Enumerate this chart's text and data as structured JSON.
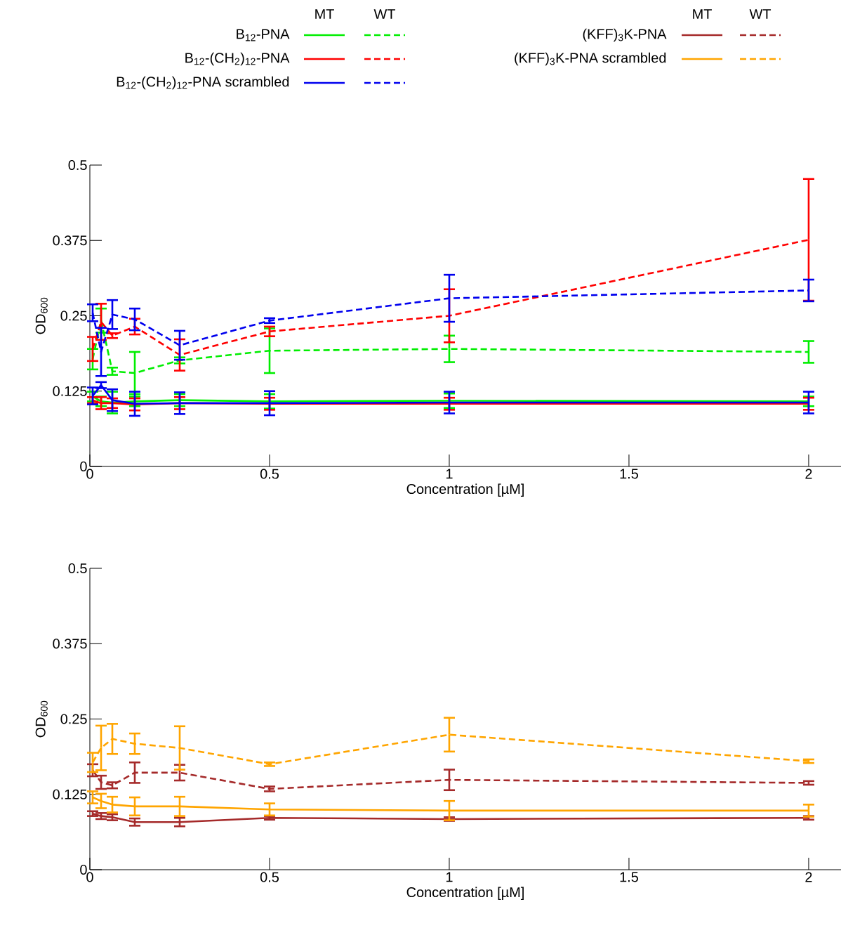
{
  "chart_data": [
    {
      "type": "line",
      "xlabel": "Concentration [µM]",
      "ylabel": "OD$_{600}$",
      "legend": "top",
      "annotations": [
        "MT",
        "WT"
      ],
      "x": [
        0.0078,
        0.03125,
        0.0625,
        0.125,
        0.25,
        0.5,
        1,
        2
      ],
      "xlim": [
        0,
        2.09
      ],
      "ylim": [
        0,
        0.5
      ],
      "xticks": [
        0,
        0.5,
        1,
        1.5,
        2
      ],
      "yticks": [
        0,
        0.125,
        0.25,
        0.375,
        0.5
      ],
      "series": [
        {
          "name": "B$_{12}$-PNA",
          "color": "#00ee00",
          "line_style": "solid",
          "values": [
            0.116,
            0.108,
            0.106,
            0.108,
            0.11,
            0.108,
            0.109,
            0.108
          ],
          "errors": [
            0.008,
            0.008,
            0.018,
            0.008,
            0.01,
            0.012,
            0.012,
            0.008
          ]
        },
        {
          "color": "#00ee00",
          "line_style": "dashed",
          "values": [
            0.178,
            0.242,
            0.158,
            0.155,
            0.176,
            0.192,
            0.195,
            0.19
          ],
          "errors": [
            0.017,
            0.02,
            0.006,
            0.035,
            0.005,
            0.037,
            0.022,
            0.018
          ]
        },
        {
          "name": "B$_{12}$-(CH$_{2}$)$_{12}$-PNA",
          "color": "#ff0000",
          "line_style": "solid",
          "values": [
            0.11,
            0.105,
            0.105,
            0.103,
            0.105,
            0.104,
            0.104,
            0.104
          ],
          "errors": [
            0.005,
            0.01,
            0.008,
            0.01,
            0.01,
            0.01,
            0.01,
            0.01
          ]
        },
        {
          "color": "#ff0000",
          "line_style": "dashed",
          "values": [
            0.195,
            0.24,
            0.217,
            0.232,
            0.185,
            0.224,
            0.25,
            0.376
          ],
          "errors": [
            0.02,
            0.03,
            0.004,
            0.013,
            0.026,
            0.008,
            0.044,
            0.101
          ]
        },
        {
          "name": "B$_{12}$-(CH$_{2}$)$_{12}$-PNA scrambled",
          "color": "#0000ee",
          "line_style": "solid",
          "values": [
            0.117,
            0.135,
            0.11,
            0.104,
            0.105,
            0.105,
            0.106,
            0.106
          ],
          "errors": [
            0.014,
            0.005,
            0.018,
            0.02,
            0.018,
            0.02,
            0.018,
            0.018
          ]
        },
        {
          "color": "#0000ee",
          "line_style": "dashed",
          "values": [
            0.255,
            0.19,
            0.252,
            0.244,
            0.201,
            0.242,
            0.279,
            0.292
          ],
          "errors": [
            0.014,
            0.04,
            0.024,
            0.018,
            0.024,
            0.004,
            0.039,
            0.018
          ]
        }
      ]
    },
    {
      "type": "line",
      "xlabel": "Concentration [µM]",
      "ylabel": "OD$_{600}$",
      "legend": "top right",
      "annotations": [
        "MT",
        "WT"
      ],
      "x": [
        0.0078,
        0.03125,
        0.0625,
        0.125,
        0.25,
        0.5,
        1,
        2
      ],
      "xlim": [
        0,
        2.09
      ],
      "ylim": [
        0,
        0.5
      ],
      "xticks": [
        0,
        0.5,
        1,
        1.5,
        2
      ],
      "yticks": [
        0,
        0.125,
        0.25,
        0.375,
        0.5
      ],
      "series": [
        {
          "name": "(KFF)$_{3}$K-PNA",
          "color": "#a52a2a",
          "line_style": "solid",
          "values": [
            0.093,
            0.089,
            0.087,
            0.079,
            0.079,
            0.086,
            0.084,
            0.086
          ],
          "errors": [
            0.004,
            0.005,
            0.005,
            0.006,
            0.007,
            0.003,
            0.003,
            0.003
          ]
        },
        {
          "color": "#a52a2a",
          "line_style": "dashed",
          "values": [
            0.165,
            0.145,
            0.14,
            0.161,
            0.161,
            0.134,
            0.149,
            0.144
          ],
          "errors": [
            0.01,
            0.011,
            0.005,
            0.017,
            0.013,
            0.004,
            0.017,
            0.003
          ]
        },
        {
          "name": "(KFF)$_{3}$K-PNA scrambled",
          "color": "#ffa500",
          "line_style": "solid",
          "values": [
            0.12,
            0.114,
            0.108,
            0.105,
            0.105,
            0.1,
            0.098,
            0.098
          ],
          "errors": [
            0.01,
            0.012,
            0.013,
            0.015,
            0.016,
            0.01,
            0.016,
            0.01
          ]
        },
        {
          "color": "#ffa500",
          "line_style": "dashed",
          "values": [
            0.178,
            0.202,
            0.217,
            0.209,
            0.202,
            0.175,
            0.224,
            0.18
          ],
          "errors": [
            0.016,
            0.037,
            0.025,
            0.017,
            0.036,
            0.003,
            0.028,
            0.003
          ]
        }
      ]
    }
  ]
}
